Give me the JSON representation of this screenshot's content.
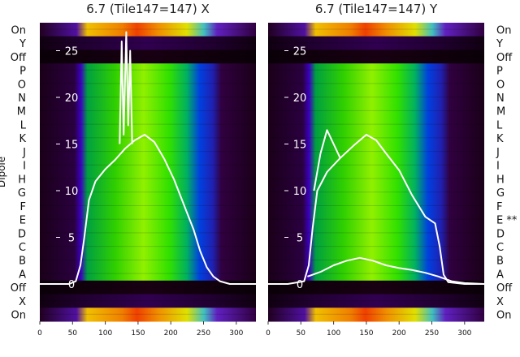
{
  "chart_data": [
    {
      "type": "heatmap",
      "title": "6.7 (Tile147=147) X",
      "ylabel": "Dipole",
      "x_ticks": [
        0,
        50,
        100,
        150,
        200,
        250,
        300
      ],
      "xlim": [
        0,
        330
      ],
      "overlay_y_ticks": [
        0,
        5,
        10,
        15,
        20,
        25
      ],
      "overlay_ylim": [
        -4,
        28
      ],
      "rows_top_to_bottom": [
        "On",
        "Y",
        "Off",
        "P",
        "O",
        "N",
        "M",
        "L",
        "K",
        "J",
        "I",
        "H",
        "G",
        "F",
        "E",
        "D",
        "C",
        "B",
        "A",
        "Off",
        "X",
        "On"
      ],
      "row_annotations": [],
      "series": [
        {
          "name": "main",
          "points": [
            [
              0,
              0
            ],
            [
              20,
              0
            ],
            [
              45,
              0
            ],
            [
              55,
              0.3
            ],
            [
              62,
              2
            ],
            [
              68,
              5
            ],
            [
              75,
              9
            ],
            [
              85,
              11
            ],
            [
              100,
              12.3
            ],
            [
              115,
              13.3
            ],
            [
              130,
              14.5
            ],
            [
              145,
              15.4
            ],
            [
              160,
              16
            ],
            [
              175,
              15.2
            ],
            [
              190,
              13.4
            ],
            [
              205,
              11.2
            ],
            [
              220,
              8.5
            ],
            [
              235,
              5.8
            ],
            [
              245,
              3.5
            ],
            [
              255,
              1.8
            ],
            [
              265,
              0.8
            ],
            [
              275,
              0.3
            ],
            [
              290,
              0
            ],
            [
              310,
              0
            ],
            [
              330,
              0
            ]
          ]
        },
        {
          "name": "spikes",
          "points": [
            [
              122,
              15
            ],
            [
              125,
              26
            ],
            [
              128,
              16
            ],
            [
              132,
              27
            ],
            [
              135,
              17
            ],
            [
              138,
              25
            ],
            [
              141,
              15
            ]
          ]
        }
      ]
    },
    {
      "type": "heatmap",
      "title": "6.7 (Tile147=147) Y",
      "ylabel": "",
      "x_ticks": [
        0,
        50,
        100,
        150,
        200,
        250,
        300
      ],
      "xlim": [
        0,
        330
      ],
      "overlay_y_ticks": [
        0,
        5,
        10,
        15,
        20,
        25
      ],
      "overlay_ylim": [
        -4,
        28
      ],
      "rows_top_to_bottom": [
        "On",
        "Y",
        "Off",
        "P",
        "O",
        "N",
        "M",
        "L",
        "K",
        "J",
        "I",
        "H",
        "G",
        "F",
        "E",
        "D",
        "C",
        "B",
        "A",
        "Off",
        "X",
        "On"
      ],
      "row_annotations": [
        "",
        "",
        "",
        "",
        "",
        "",
        "",
        "",
        "",
        "",
        "",
        "",
        "",
        "",
        "**",
        "",
        "",
        "",
        "",
        "",
        "",
        ""
      ],
      "series": [
        {
          "name": "main",
          "points": [
            [
              0,
              0
            ],
            [
              30,
              0
            ],
            [
              55,
              0.3
            ],
            [
              62,
              2
            ],
            [
              68,
              6
            ],
            [
              75,
              10
            ],
            [
              90,
              12
            ],
            [
              110,
              13.5
            ],
            [
              130,
              14.8
            ],
            [
              150,
              16
            ],
            [
              165,
              15.4
            ],
            [
              180,
              14
            ],
            [
              200,
              12.2
            ],
            [
              220,
              9.5
            ],
            [
              240,
              7.2
            ],
            [
              255,
              6.5
            ],
            [
              262,
              4
            ],
            [
              268,
              1
            ],
            [
              275,
              0.2
            ],
            [
              300,
              0
            ],
            [
              330,
              0
            ]
          ]
        },
        {
          "name": "low",
          "points": [
            [
              60,
              0.8
            ],
            [
              80,
              1.3
            ],
            [
              100,
              2
            ],
            [
              120,
              2.5
            ],
            [
              140,
              2.8
            ],
            [
              160,
              2.5
            ],
            [
              180,
              2
            ],
            [
              200,
              1.7
            ],
            [
              220,
              1.5
            ],
            [
              240,
              1.2
            ],
            [
              260,
              0.8
            ],
            [
              280,
              0.3
            ],
            [
              300,
              0.1
            ],
            [
              330,
              0
            ]
          ]
        },
        {
          "name": "early-peak",
          "points": [
            [
              70,
              10
            ],
            [
              80,
              14
            ],
            [
              90,
              16.5
            ],
            [
              100,
              15
            ],
            [
              110,
              13.5
            ]
          ]
        }
      ]
    }
  ]
}
